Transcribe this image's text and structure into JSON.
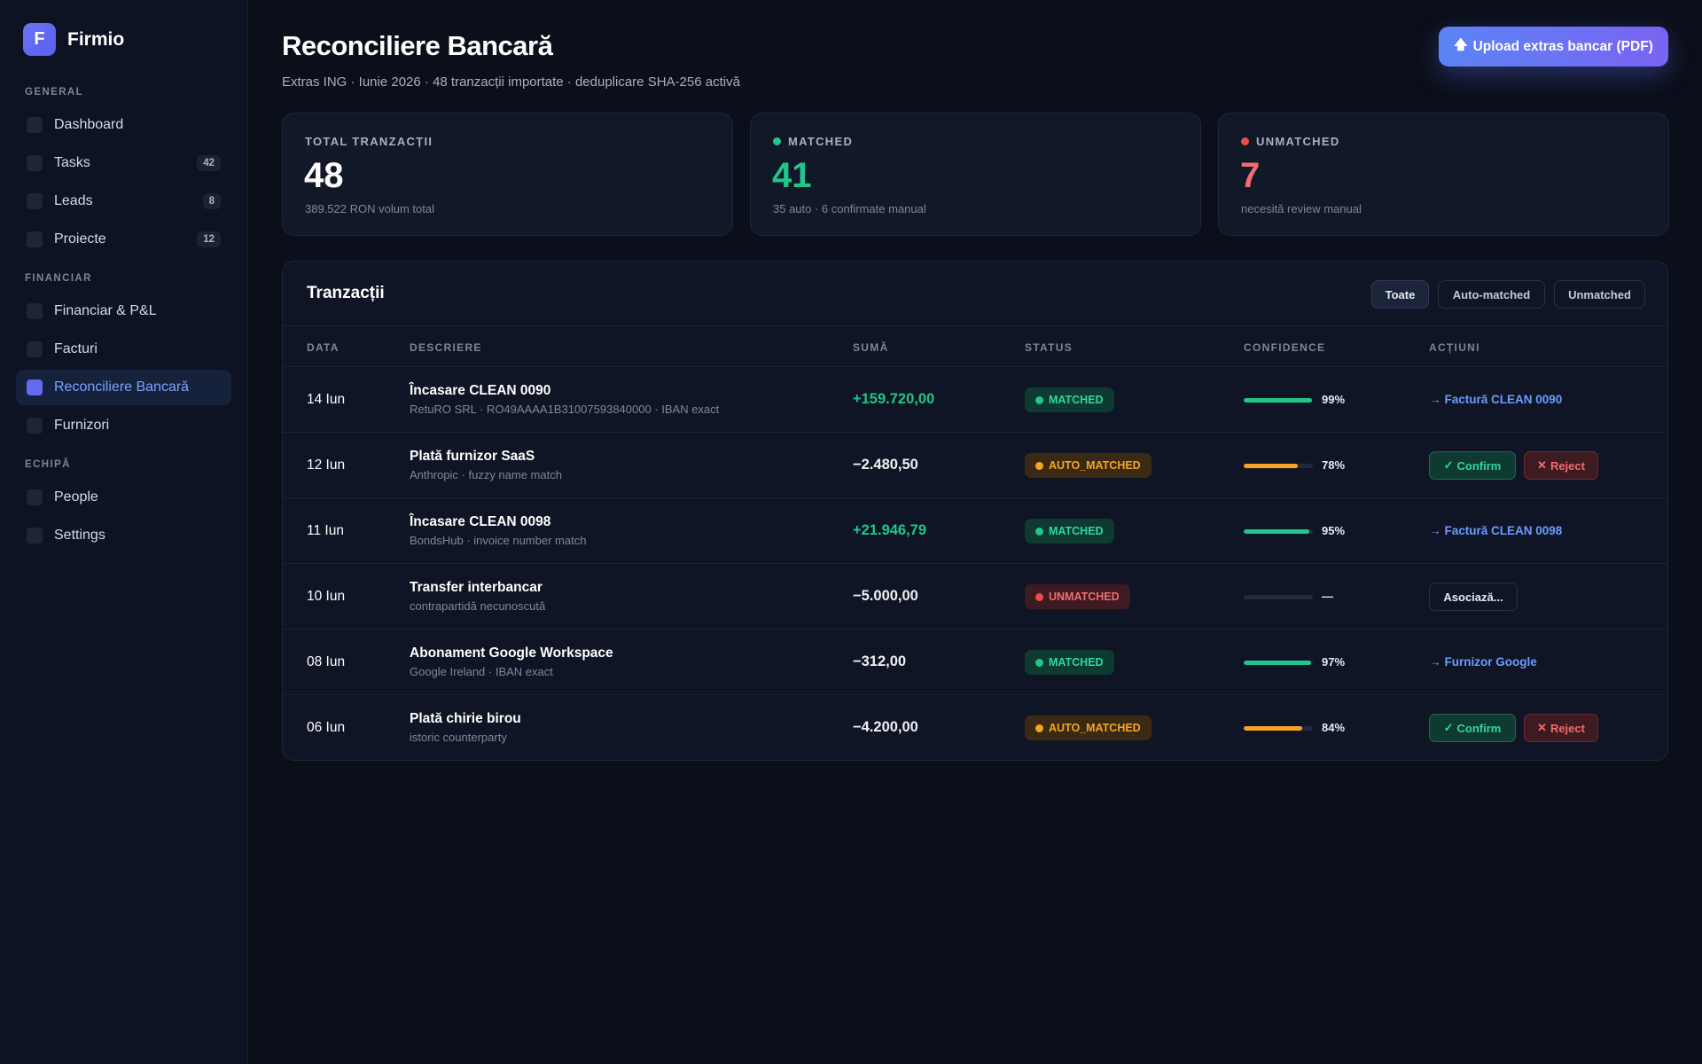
{
  "brand": {
    "logo_letter": "F",
    "name": "Firmio"
  },
  "sidebar": {
    "sections": [
      {
        "label": "GENERAL"
      },
      {
        "label": "FINANCIAR"
      },
      {
        "label": "ECHIPĂ"
      }
    ],
    "items": [
      {
        "label": "Dashboard",
        "badge": ""
      },
      {
        "label": "Tasks",
        "badge": "42"
      },
      {
        "label": "Leads",
        "badge": "8"
      },
      {
        "label": "Proiecte",
        "badge": "12"
      },
      {
        "label": "Financiar & P&L",
        "badge": ""
      },
      {
        "label": "Facturi",
        "badge": ""
      },
      {
        "label": "Reconciliere Bancară",
        "badge": "",
        "active": true
      },
      {
        "label": "Furnizori",
        "badge": ""
      },
      {
        "label": "People",
        "badge": ""
      },
      {
        "label": "Settings",
        "badge": ""
      }
    ]
  },
  "header": {
    "title": "Reconciliere Bancară",
    "subtitle": "Extras ING · Iunie 2026 · 48 tranzacții importate · deduplicare SHA-256 activă",
    "upload_icon": "upload-arrow-icon",
    "upload_label": "Upload extras bancar (PDF)"
  },
  "stats": [
    {
      "label": "TOTAL TRANZACȚII",
      "value": "48",
      "sub": "389.522 RON volum total",
      "dot_color": "",
      "value_color": "#ffffff"
    },
    {
      "label": "MATCHED",
      "value": "41",
      "sub": "35 auto · 6 confirmate manual",
      "dot_color": "#22c58b",
      "value_color": "#22c58b"
    },
    {
      "label": "UNMATCHED",
      "value": "7",
      "sub": "necesită review manual",
      "dot_color": "#f04b4b",
      "value_color": "#f26d6d"
    }
  ],
  "table": {
    "title": "Tranzacții",
    "filters": [
      "Toate",
      "Auto-matched",
      "Unmatched"
    ],
    "active_filter": "Toate",
    "columns": [
      "DATA",
      "DESCRIERE",
      "SUMĂ",
      "STATUS",
      "CONFIDENCE",
      "ACȚIUNI"
    ],
    "rows": [
      {
        "date": "14 Iun",
        "desc": "Încasare CLEAN 0090",
        "desc_sub": "RetuRO SRL · RO49AAAA1B31007593840000 · IBAN exact",
        "amount": "+159.720,00",
        "amount_sign": "pos",
        "status": "MATCHED",
        "status_type": "matched",
        "confidence": 0.99,
        "confidence_label": "99%",
        "action_type": "link",
        "action_label": "Factură CLEAN 0090"
      },
      {
        "date": "12 Iun",
        "desc": "Plată furnizor SaaS",
        "desc_sub": "Anthropic · fuzzy name match",
        "amount": "−2.480,50",
        "amount_sign": "neg",
        "status": "AUTO_MATCHED",
        "status_type": "auto",
        "confidence": 0.78,
        "confidence_label": "78%",
        "action_type": "confirm-reject",
        "confirm_label": "Confirm",
        "reject_label": "Reject"
      },
      {
        "date": "11 Iun",
        "desc": "Încasare CLEAN 0098",
        "desc_sub": "BondsHub · invoice number match",
        "amount": "+21.946,79",
        "amount_sign": "pos",
        "status": "MATCHED",
        "status_type": "matched",
        "confidence": 0.95,
        "confidence_label": "95%",
        "action_type": "link",
        "action_label": "Factură CLEAN 0098"
      },
      {
        "date": "10 Iun",
        "desc": "Transfer interbancar",
        "desc_sub": "contrapartidă necunoscută",
        "amount": "−5.000,00",
        "amount_sign": "neg",
        "status": "UNMATCHED",
        "status_type": "unmatched",
        "confidence": 0,
        "confidence_label": "—",
        "action_type": "associate",
        "action_label": "Asociază..."
      },
      {
        "date": "08 Iun",
        "desc": "Abonament Google Workspace",
        "desc_sub": "Google Ireland · IBAN exact",
        "amount": "−312,00",
        "amount_sign": "neg",
        "status": "MATCHED",
        "status_type": "matched",
        "confidence": 0.97,
        "confidence_label": "97%",
        "action_type": "link",
        "action_label": "Furnizor Google"
      },
      {
        "date": "06 Iun",
        "desc": "Plată chirie birou",
        "desc_sub": "istoric counterparty",
        "amount": "−4.200,00",
        "amount_sign": "neg",
        "status": "AUTO_MATCHED",
        "status_type": "auto",
        "confidence": 0.84,
        "confidence_label": "84%",
        "action_type": "confirm-reject",
        "confirm_label": "Confirm",
        "reject_label": "Reject"
      }
    ]
  },
  "colors": {
    "matched": "#22c58b",
    "auto": "#f5a524",
    "unmatched": "#f04b4b",
    "accent": "#6469f2",
    "link": "#6b9cff"
  },
  "icons": {
    "arrow": "arrow-right-icon",
    "check": "check-icon",
    "cross": "close-icon"
  }
}
